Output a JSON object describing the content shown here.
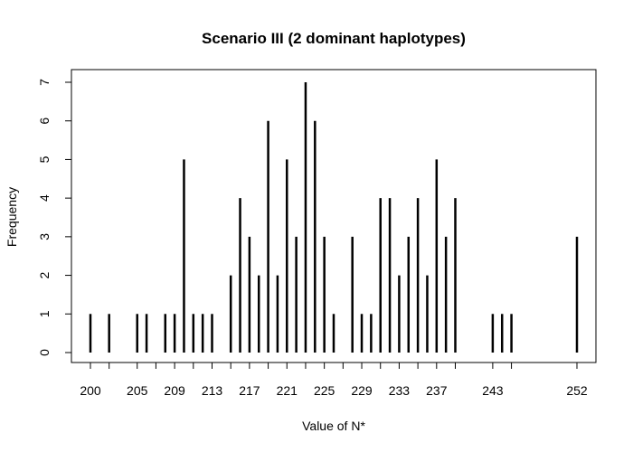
{
  "chart_data": {
    "type": "bar",
    "style": "histogram-spikes",
    "title": "Scenario III (2 dominant haplotypes)",
    "xlabel": "Value of N*",
    "ylabel": "Frequency",
    "xlim": [
      200,
      252
    ],
    "ylim": [
      0,
      7
    ],
    "x_ticks": [
      200,
      205,
      209,
      213,
      217,
      221,
      225,
      229,
      233,
      237,
      243,
      252
    ],
    "x_minor_ticks": [
      202,
      207,
      211,
      215,
      219,
      223,
      227,
      231,
      235,
      239,
      245
    ],
    "y_ticks": [
      0,
      1,
      2,
      3,
      4,
      5,
      6,
      7
    ],
    "x": [
      200,
      202,
      205,
      206,
      208,
      209,
      210,
      211,
      212,
      213,
      215,
      216,
      217,
      218,
      219,
      220,
      221,
      222,
      223,
      224,
      225,
      226,
      228,
      229,
      230,
      231,
      232,
      233,
      234,
      235,
      236,
      237,
      238,
      239,
      243,
      244,
      245,
      252
    ],
    "values": [
      1,
      1,
      1,
      1,
      1,
      1,
      5,
      1,
      1,
      1,
      2,
      4,
      3,
      2,
      6,
      2,
      5,
      3,
      7,
      6,
      3,
      1,
      3,
      1,
      1,
      4,
      4,
      2,
      3,
      4,
      2,
      5,
      3,
      4,
      1,
      1,
      1,
      3
    ],
    "grid": false,
    "legend": "none",
    "color": "#000000"
  }
}
